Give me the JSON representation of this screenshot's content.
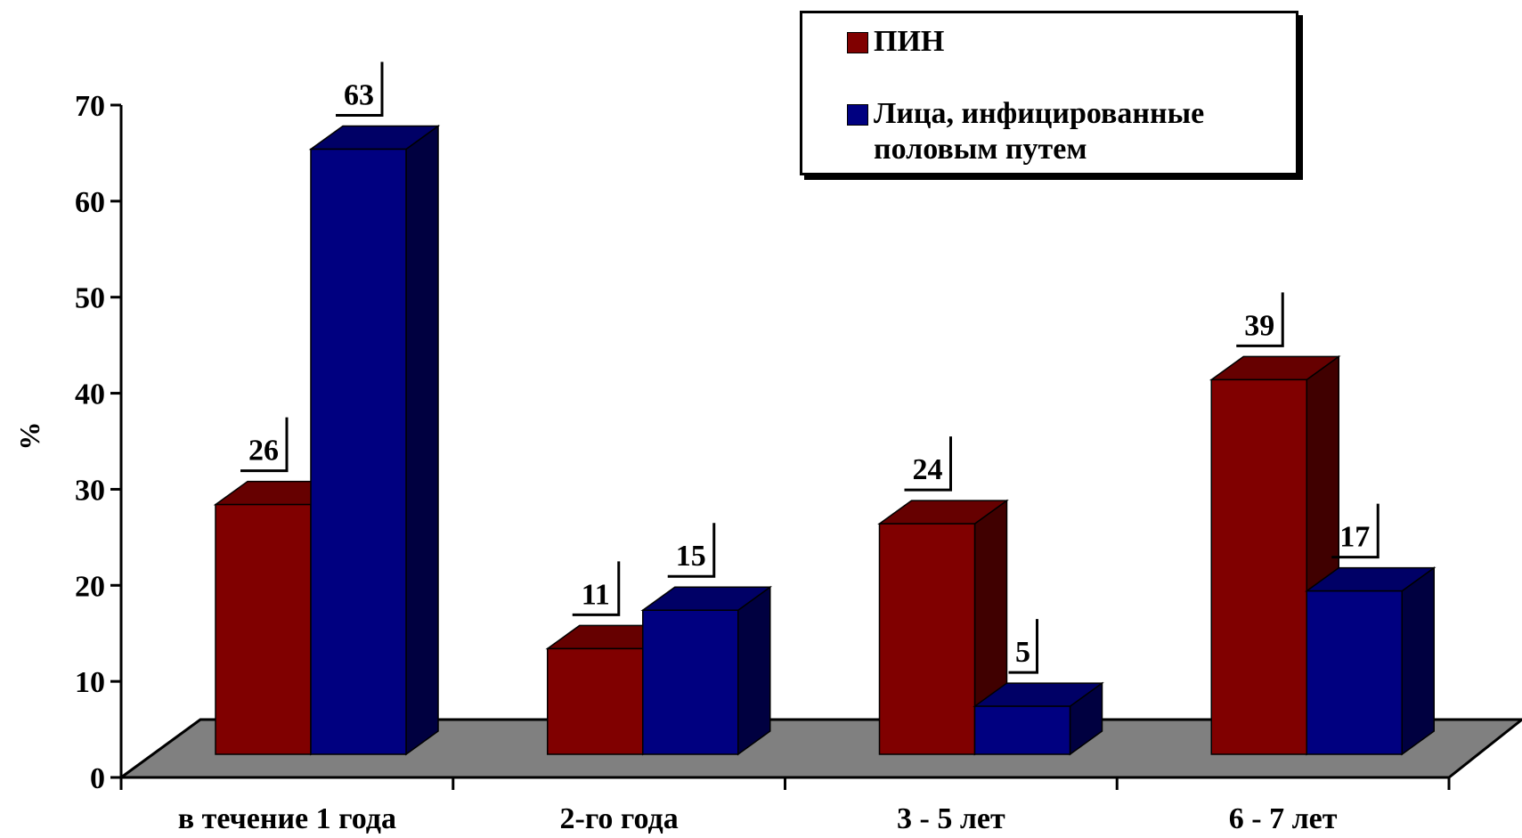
{
  "chart_data": {
    "type": "bar",
    "title": "",
    "xlabel": "",
    "ylabel": "%",
    "ylim": [
      0,
      70
    ],
    "yticks": [
      0,
      10,
      20,
      30,
      40,
      50,
      60,
      70
    ],
    "grid": false,
    "legend_position": "top-right",
    "categories": [
      "в течение 1 года",
      "2-го года",
      "3 - 5 лет",
      "6 - 7 лет"
    ],
    "series": [
      {
        "name": "ПИН",
        "color": "#800000",
        "values": [
          26,
          11,
          24,
          39
        ]
      },
      {
        "name": "Лица, инфицированные половым путем",
        "color": "#000080",
        "values": [
          63,
          15,
          5,
          17
        ]
      }
    ]
  }
}
